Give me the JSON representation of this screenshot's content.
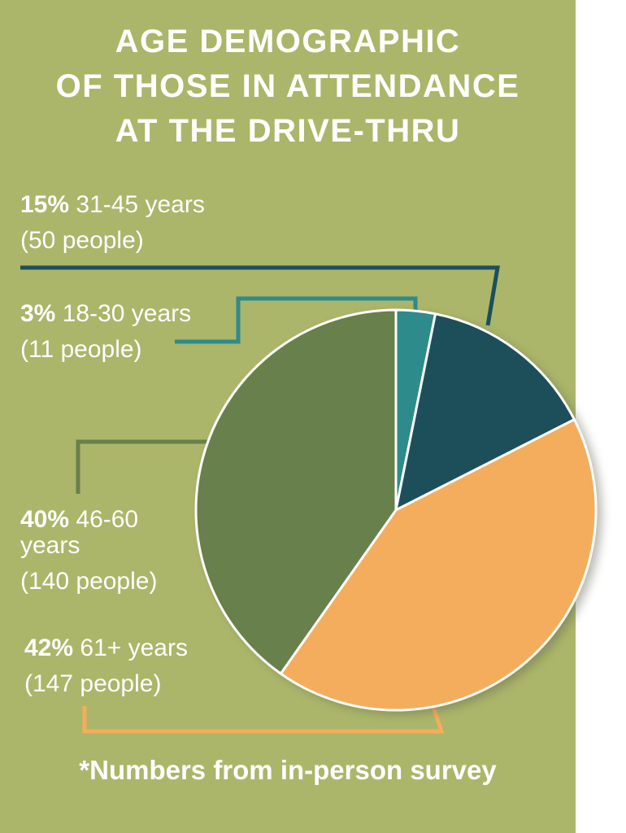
{
  "title_lines": [
    "AGE DEMOGRAPHIC",
    "OF THOSE IN ATTENDANCE",
    "AT THE DRIVE-THRU"
  ],
  "footnote": "*Numbers from in-person survey",
  "colors": {
    "background": "#abb66a",
    "text": "#ffffff",
    "18-30": "#2e8b8b",
    "31-45": "#1d4f5b",
    "46-60": "#68804b",
    "61+": "#f4ad5c"
  },
  "chart_data": {
    "type": "pie",
    "title": "AGE DEMOGRAPHIC OF THOSE IN ATTENDANCE AT THE DRIVE-THRU",
    "slices": [
      {
        "key": "18-30",
        "pct_label": "3%",
        "range": "18-30 years",
        "count_label": "(11 people)",
        "value": 11
      },
      {
        "key": "31-45",
        "pct_label": "15%",
        "range": "31-45 years",
        "count_label": "(50 people)",
        "value": 50
      },
      {
        "key": "61+",
        "pct_label": "42%",
        "range": "61+ years",
        "count_label": "(147 people)",
        "value": 147
      },
      {
        "key": "46-60",
        "pct_label": "40%",
        "range": "46-60 years",
        "count_label": "(140 people)",
        "value": 140
      }
    ]
  }
}
